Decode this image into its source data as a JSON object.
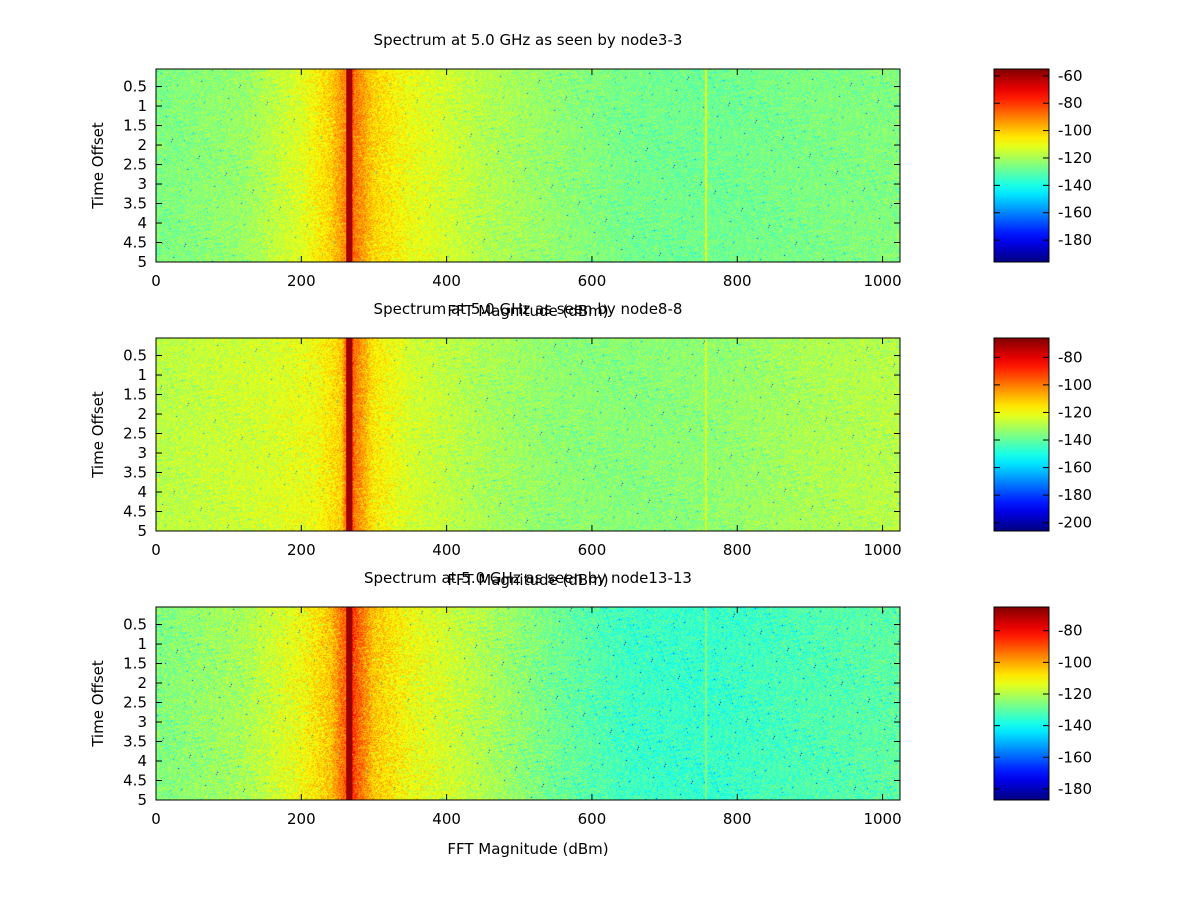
{
  "chart_data": [
    {
      "type": "heatmap",
      "title": "Spectrum at 5.0 GHz as seen by node3-3",
      "xlabel": "FFT Magnitude (dBm)",
      "ylabel": "Time Offset",
      "xlim": [
        0,
        1024
      ],
      "ylim": [
        5,
        0.05
      ],
      "x_ticks": [
        0,
        200,
        400,
        600,
        800,
        1000
      ],
      "y_ticks": [
        0.5,
        1,
        1.5,
        2,
        2.5,
        3,
        3.5,
        4,
        4.5,
        5
      ],
      "colorbar": {
        "min": -196,
        "max": -55,
        "ticks": [
          -60,
          -80,
          -100,
          -120,
          -140,
          -160,
          -180
        ]
      },
      "features": [
        {
          "kind": "peak",
          "x": 266,
          "value": -60
        },
        {
          "kind": "spur",
          "x": 757,
          "value": -112
        }
      ],
      "background_profile": [
        [
          0,
          -126
        ],
        [
          120,
          -122
        ],
        [
          200,
          -112
        ],
        [
          240,
          -102
        ],
        [
          262,
          -90
        ],
        [
          266,
          -60
        ],
        [
          272,
          -88
        ],
        [
          300,
          -102
        ],
        [
          350,
          -110
        ],
        [
          450,
          -118
        ],
        [
          550,
          -123
        ],
        [
          650,
          -127
        ],
        [
          760,
          -128
        ],
        [
          900,
          -126
        ],
        [
          1024,
          -125
        ]
      ]
    },
    {
      "type": "heatmap",
      "title": "Spectrum at 5.0 GHz as seen by node8-8",
      "xlabel": "FFT Magnitude (dBm)",
      "ylabel": "Time Offset",
      "xlim": [
        0,
        1024
      ],
      "ylim": [
        5,
        0.05
      ],
      "x_ticks": [
        0,
        200,
        400,
        600,
        800,
        1000
      ],
      "y_ticks": [
        0.5,
        1,
        1.5,
        2,
        2.5,
        3,
        3.5,
        4,
        4.5,
        5
      ],
      "colorbar": {
        "min": -206,
        "max": -66,
        "ticks": [
          -80,
          -100,
          -120,
          -140,
          -160,
          -180,
          -200
        ]
      },
      "features": [
        {
          "kind": "peak",
          "x": 266,
          "value": -70
        },
        {
          "kind": "spur",
          "x": 757,
          "value": -124
        }
      ],
      "background_profile": [
        [
          0,
          -128
        ],
        [
          150,
          -124
        ],
        [
          220,
          -120
        ],
        [
          255,
          -112
        ],
        [
          262,
          -96
        ],
        [
          266,
          -70
        ],
        [
          272,
          -98
        ],
        [
          300,
          -116
        ],
        [
          350,
          -124
        ],
        [
          450,
          -130
        ],
        [
          550,
          -134
        ],
        [
          650,
          -135
        ],
        [
          760,
          -134
        ],
        [
          900,
          -130
        ],
        [
          1024,
          -128
        ]
      ]
    },
    {
      "type": "heatmap",
      "title": "Spectrum at 5.0 GHz as seen by node13-13",
      "xlabel": "FFT Magnitude (dBm)",
      "ylabel": "Time Offset",
      "xlim": [
        0,
        1024
      ],
      "ylim": [
        5,
        0.05
      ],
      "x_ticks": [
        0,
        200,
        400,
        600,
        800,
        1000
      ],
      "y_ticks": [
        0.5,
        1,
        1.5,
        2,
        2.5,
        3,
        3.5,
        4,
        4.5,
        5
      ],
      "colorbar": {
        "min": -187,
        "max": -65,
        "ticks": [
          -80,
          -100,
          -120,
          -140,
          -160,
          -180
        ]
      },
      "features": [
        {
          "kind": "peak",
          "x": 266,
          "value": -68
        },
        {
          "kind": "spur",
          "x": 757,
          "value": -126
        }
      ],
      "background_profile": [
        [
          0,
          -126
        ],
        [
          120,
          -121
        ],
        [
          200,
          -112
        ],
        [
          240,
          -104
        ],
        [
          262,
          -90
        ],
        [
          266,
          -68
        ],
        [
          272,
          -88
        ],
        [
          300,
          -104
        ],
        [
          350,
          -112
        ],
        [
          450,
          -120
        ],
        [
          550,
          -128
        ],
        [
          650,
          -134
        ],
        [
          760,
          -135
        ],
        [
          900,
          -132
        ],
        [
          1024,
          -130
        ]
      ]
    }
  ]
}
